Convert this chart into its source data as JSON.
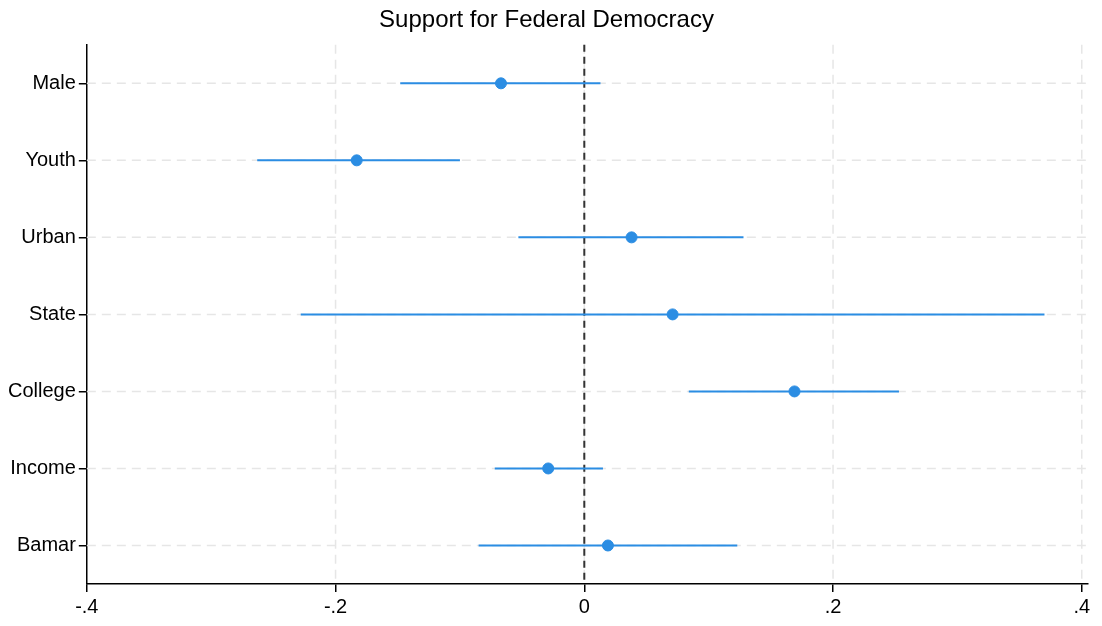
{
  "chart_data": {
    "type": "scatter",
    "orientation": "horizontal",
    "title": "Support for Federal Democracy",
    "categories": [
      "Male",
      "Youth",
      "Urban",
      "State",
      "College",
      "Income",
      "Bamar"
    ],
    "values": [
      -0.067,
      -0.183,
      0.038,
      0.071,
      0.169,
      -0.029,
      0.019
    ],
    "errors": [
      [
        -0.148,
        0.013
      ],
      [
        -0.263,
        -0.1
      ],
      [
        -0.053,
        0.128
      ],
      [
        -0.228,
        0.37
      ],
      [
        0.084,
        0.253
      ],
      [
        -0.072,
        0.015
      ],
      [
        -0.085,
        0.123
      ]
    ],
    "color": "#2b8de3",
    "marker": "circle",
    "grid": true,
    "xlim": [
      -0.4,
      0.405
    ],
    "xticks": [
      {
        "value": -0.4,
        "label": "-.4"
      },
      {
        "value": -0.2,
        "label": "-.2"
      },
      0,
      {
        "value": 0.2,
        "label": ".2"
      },
      {
        "value": 0.4,
        "label": ".4"
      }
    ],
    "ref_lines": [
      {
        "axis": "x",
        "value": 0,
        "color": "#333333",
        "line_style": "dashed"
      }
    ]
  }
}
